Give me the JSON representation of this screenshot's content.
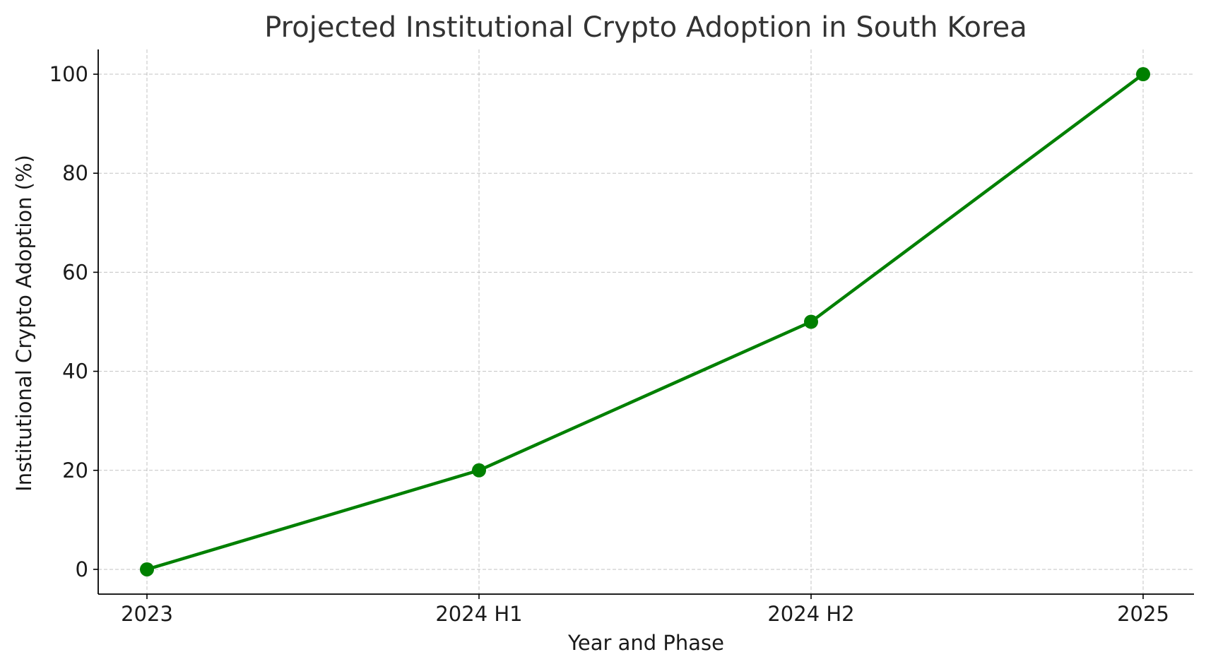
{
  "chart_data": {
    "type": "line",
    "title": "Projected Institutional Crypto Adoption in South Korea",
    "xlabel": "Year and Phase",
    "ylabel": "Institutional Crypto Adoption (%)",
    "categories": [
      "2023",
      "2024 H1",
      "2024 H2",
      "2025"
    ],
    "series": [
      {
        "values": [
          0,
          20,
          50,
          100
        ],
        "color": "#008000",
        "marker": "circle"
      }
    ],
    "ylim": [
      -5,
      105
    ],
    "yticks": [
      0,
      20,
      40,
      60,
      80,
      100
    ],
    "grid": true,
    "grid_style": "dashed",
    "legend": "none"
  }
}
